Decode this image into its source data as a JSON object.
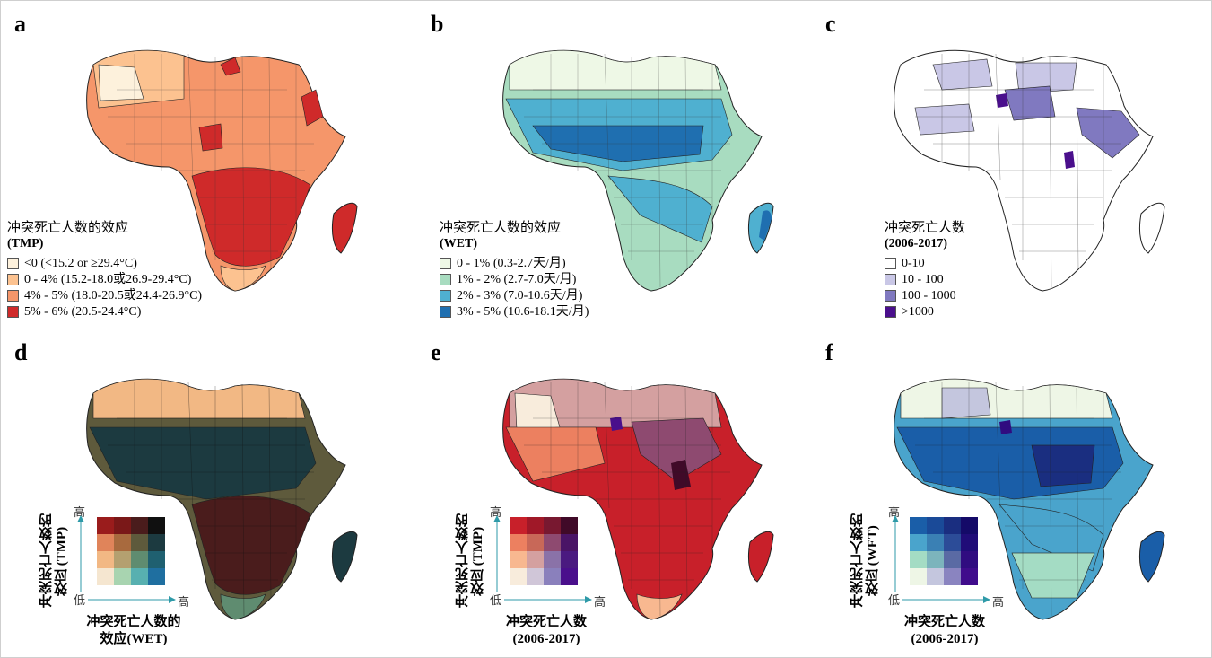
{
  "panels": {
    "a": {
      "label": "a",
      "legend_title": "冲突死亡人数的效应",
      "legend_subtitle": "(TMP)",
      "items": [
        {
          "label": "<0 (<15.2 or ≥29.4°C)",
          "color": "#fdf1dc"
        },
        {
          "label": "0 - 4% (15.2-18.0或26.9-29.4°C)",
          "color": "#fcc290"
        },
        {
          "label": "4% - 5% (18.0-20.5或24.4-26.9°C)",
          "color": "#f5966a"
        },
        {
          "label": "5% - 6% (20.5-24.4°C)",
          "color": "#cf2a2a"
        }
      ]
    },
    "b": {
      "label": "b",
      "legend_title": "冲突死亡人数的效应",
      "legend_subtitle": "(WET)",
      "items": [
        {
          "label": "0 - 1%  (0.3-2.7天/月)",
          "color": "#eef8e6"
        },
        {
          "label": "1% - 2% (2.7-7.0天/月)",
          "color": "#a8dcc0"
        },
        {
          "label": "2% - 3% (7.0-10.6天/月)",
          "color": "#4fb0d0"
        },
        {
          "label": "3% - 5% (10.6-18.1天/月)",
          "color": "#1f6fb0"
        }
      ]
    },
    "c": {
      "label": "c",
      "legend_title": "冲突死亡人数",
      "legend_subtitle": "(2006-2017)",
      "items": [
        {
          "label": "0-10",
          "color": "#ffffff"
        },
        {
          "label": "10 - 100",
          "color": "#c9c7e6"
        },
        {
          "label": "100 - 1000",
          "color": "#8079c0"
        },
        {
          "label": ">1000",
          "color": "#4a0f8c"
        }
      ]
    },
    "d": {
      "label": "d",
      "y_title": "冲突死亡人数的效应 (TMP)",
      "x_title_1": "冲突死亡人数的",
      "x_title_2": "效应(WET)",
      "high": "高",
      "low": "低",
      "x_high": "高",
      "matrix": [
        [
          "#9a1c1c",
          "#7a1818",
          "#4a1c1c",
          "#101010"
        ],
        [
          "#e0845a",
          "#a86a3e",
          "#5e5a3c",
          "#1c3a40"
        ],
        [
          "#f2b884",
          "#b4a070",
          "#5f8c70",
          "#1f6070"
        ],
        [
          "#f5e6d0",
          "#a8d4b0",
          "#58b0b0",
          "#1f6fa0"
        ]
      ]
    },
    "e": {
      "label": "e",
      "y_title": "冲突死亡人数的效应 (TMP)",
      "x_title_1": "冲突死亡人数",
      "x_title_2": "(2006-2017)",
      "high": "高",
      "low": "低",
      "x_high": "高",
      "matrix": [
        [
          "#c8202a",
          "#a01828",
          "#781830",
          "#400a28"
        ],
        [
          "#ec8060",
          "#c86858",
          "#8e4a70",
          "#4a1466"
        ],
        [
          "#f8b890",
          "#d4a0a0",
          "#8a72a8",
          "#4a1a80"
        ],
        [
          "#f8ecdc",
          "#d0c6d8",
          "#8a80bc",
          "#4a0f8c"
        ]
      ]
    },
    "f": {
      "label": "f",
      "y_title": "冲突死亡人数的效应 (WET)",
      "x_title_1": "冲突死亡人数",
      "x_title_2": "(2006-2017)",
      "high": "高",
      "low": "低",
      "x_high": "高",
      "matrix": [
        [
          "#1a5ea8",
          "#1a4a98",
          "#1a2e80",
          "#140a68"
        ],
        [
          "#4aa4cc",
          "#3a80b4",
          "#2c4c98",
          "#200c78"
        ],
        [
          "#a4dcc4",
          "#7cb4bc",
          "#5a6aa4",
          "#300c80"
        ],
        [
          "#eef6e6",
          "#c4c6de",
          "#8a84c0",
          "#400c8c"
        ]
      ]
    }
  },
  "colors": {
    "border": "#222222",
    "axis_arrow": "#2e9aa8"
  }
}
